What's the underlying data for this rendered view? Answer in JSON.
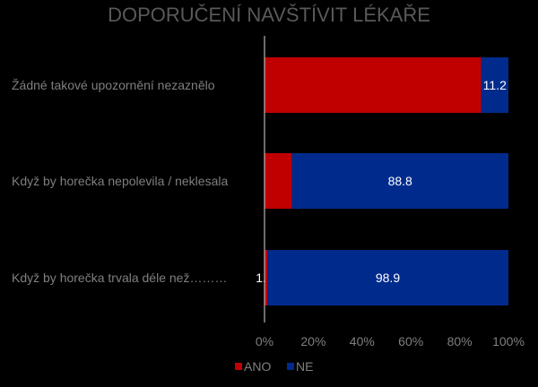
{
  "chart_data": {
    "type": "bar",
    "orientation": "horizontal",
    "stacked": "percent",
    "title": "DOPORUČENÍ NAVŠTÍVIT LÉKAŘE",
    "categories": [
      "Žádné takové upozornění nezaznělo",
      "Když by horečka nepolevila / neklesala",
      "Když by horečka trvala déle než………"
    ],
    "series": [
      {
        "name": "ANO",
        "values": [
          88.8,
          11.2,
          1.1
        ],
        "color": "#c00000",
        "labels": [
          "",
          "",
          "1.1"
        ]
      },
      {
        "name": "NE",
        "values": [
          11.2,
          88.8,
          98.9
        ],
        "color": "#002b8c",
        "labels": [
          "11.2",
          "88.8",
          "98.9"
        ]
      }
    ],
    "xlim": [
      0,
      100
    ],
    "xticks": [
      "0%",
      "20%",
      "40%",
      "60%",
      "80%",
      "100%"
    ],
    "legend": "bottom",
    "grid": false
  }
}
